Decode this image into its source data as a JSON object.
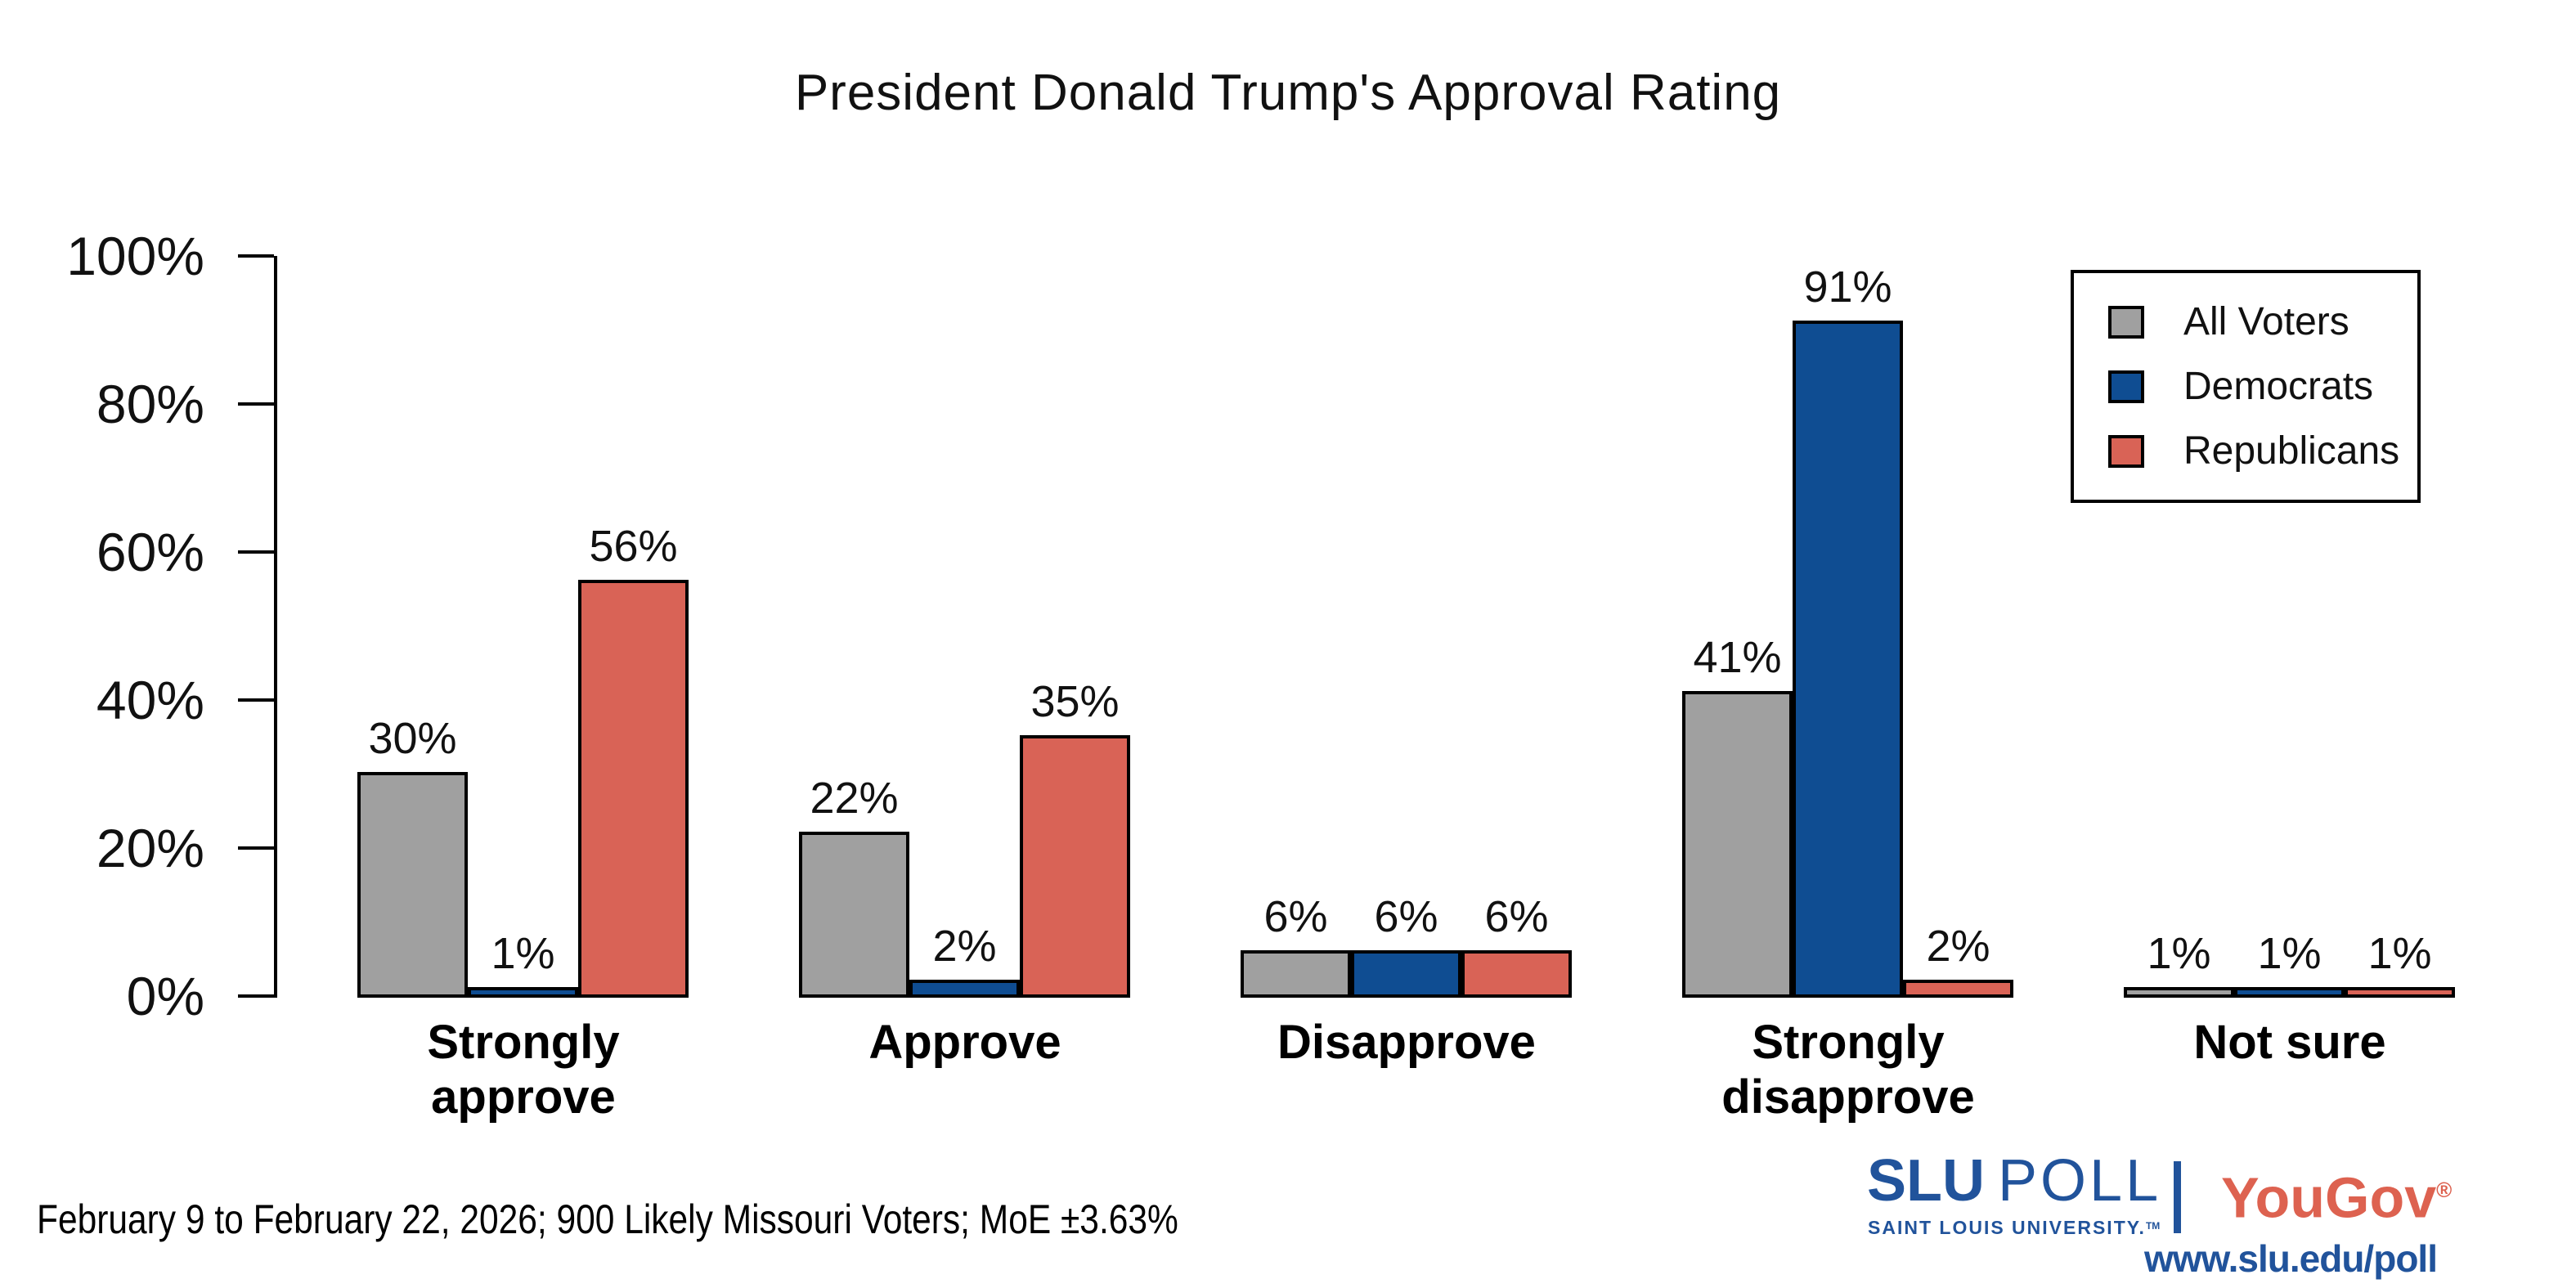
{
  "title": "President Donald Trump's Approval Rating",
  "chart_data": {
    "type": "bar",
    "title": "President Donald Trump's Approval Rating",
    "categories": [
      "Strongly approve",
      "Approve",
      "Disapprove",
      "Strongly disapprove",
      "Not sure"
    ],
    "series": [
      {
        "name": "All Voters",
        "color": "#a0a0a0",
        "values": [
          30,
          22,
          6,
          41,
          1
        ]
      },
      {
        "name": "Democrats",
        "color": "#0f4d92",
        "values": [
          1,
          2,
          6,
          91,
          1
        ]
      },
      {
        "name": "Republicans",
        "color": "#d96356",
        "values": [
          56,
          35,
          6,
          2,
          1
        ]
      }
    ],
    "value_label_format": "{v}%",
    "yticks": [
      0,
      20,
      40,
      60,
      80,
      100
    ],
    "ytick_format": "{v}%",
    "ylim": [
      0,
      100
    ],
    "grid": false,
    "legend_position": "top-right",
    "bar_border_color": "#000000"
  },
  "footer": {
    "note": "February 9 to February 22, 2026; 900 Likely Missouri Voters; MoE ±3.63%"
  },
  "branding": {
    "slu": "SLU",
    "poll": "POLL",
    "slu_sub": "SAINT LOUIS UNIVERSITY.",
    "tm": "TM",
    "yougov": "YouGov",
    "registered": "®",
    "website": "www.slu.edu/poll",
    "slu_blue": "#21539b",
    "yougov_red": "#dd6250"
  }
}
